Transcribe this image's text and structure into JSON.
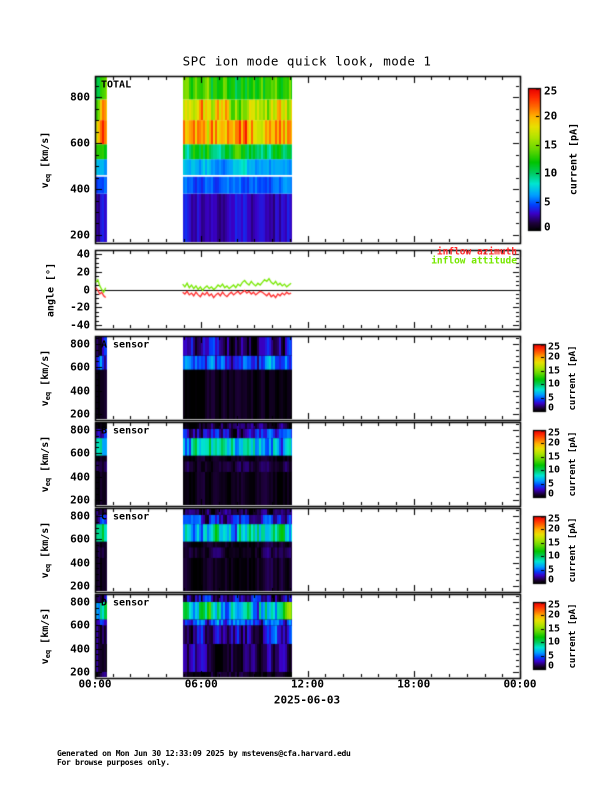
{
  "title": "SPC ion mode quick look, mode 1",
  "x_axis": {
    "labels": [
      "00:00",
      "06:00",
      "12:00",
      "18:00",
      "00:00"
    ],
    "hours": [
      0,
      6,
      12,
      18,
      24
    ],
    "minor_step_hours": 1,
    "date_label": "2025-06-03",
    "range_hours": [
      0,
      24
    ]
  },
  "colorbar": {
    "label": "current [pA]",
    "ticks": [
      0,
      5,
      10,
      15,
      20,
      25
    ],
    "range_pA": [
      0,
      25
    ]
  },
  "footer": {
    "line1": "Generated on Mon Jun 30 12:33:09 2025 by mstevens@cfa.harvard.edu",
    "line2": "For browse purposes only."
  },
  "chart_data": {
    "type": "heatmap",
    "subtype": "time-velocity current spectrograms, 6 stacked panels",
    "date": "2025-06-03",
    "x_hours_range": [
      0,
      24
    ],
    "measurement_segments_hours": [
      [
        0.05,
        0.7
      ],
      [
        4.95,
        11.1
      ]
    ],
    "colormap_range_pA": [
      0,
      25
    ],
    "v_axis_label": {
      "pre": "v",
      "sub": "eq",
      "post": "[km/s]"
    },
    "panels": [
      {
        "id": "total",
        "label": "TOTAL",
        "kind": "spectrogram",
        "background": "white",
        "v_range": [
          165,
          892
        ],
        "v_ticks": [
          200,
          400,
          600,
          800
        ],
        "v_minor_step": 50,
        "bands": [
          {
            "v": [
              165,
              380
            ],
            "pA": 3.2,
            "var": 1.2
          },
          {
            "v": [
              380,
              460
            ],
            "pA": 5.0,
            "var": 1.2
          },
          {
            "v": [
              460,
              530
            ],
            "pA": 6.8,
            "var": 1.5
          },
          {
            "v": [
              530,
              595
            ],
            "pA": 11.0,
            "var": 2.5
          },
          {
            "v": [
              595,
              700
            ],
            "pA": 20.0,
            "var": 4.0
          },
          {
            "v": [
              700,
              790
            ],
            "pA": 17.0,
            "var": 5.0
          },
          {
            "v": [
              790,
              892
            ],
            "pA": 12.0,
            "var": 3.5
          }
        ],
        "white_line_v": 457
      },
      {
        "id": "angle",
        "label": null,
        "kind": "line",
        "y_label": "angle [°]",
        "y_range": [
          -44,
          44
        ],
        "y_ticks": [
          -40,
          -20,
          0,
          20,
          40
        ],
        "y_minor_step": 5,
        "zero_line": true,
        "series": [
          {
            "name": "inflow azimuth",
            "color": "#ff2a2a",
            "segments": [
              {
                "h0": 0.05,
                "dh": 0.11,
                "values": [
                  2,
                  -1,
                  -5,
                  -3,
                  -7,
                  -9
                ]
              },
              {
                "h0": 4.95,
                "dh": 0.125,
                "values": [
                  -3,
                  -5,
                  -2,
                  -6,
                  -4,
                  -7,
                  -3,
                  -6,
                  -8,
                  -4,
                  -6,
                  -3,
                  -7,
                  -5,
                  -9,
                  -6,
                  -4,
                  -7,
                  -3,
                  -6,
                  -8,
                  -5,
                  -3,
                  -6,
                  -4,
                  -2,
                  -5,
                  -3,
                  -1,
                  -4,
                  -2,
                  -5,
                  -3,
                  -6,
                  -4,
                  -2,
                  -3,
                  -5,
                  -7,
                  -4,
                  -8,
                  -6,
                  -9,
                  -5,
                  -7,
                  -4,
                  -6,
                  -3,
                  -5,
                  -4
                ]
              }
            ]
          },
          {
            "name": "inflow attitude",
            "color": "#77e800",
            "segments": [
              {
                "h0": 0.05,
                "dh": 0.11,
                "values": [
                  8,
                  11,
                  4,
                  0,
                  -3,
                  2
                ]
              },
              {
                "h0": 4.95,
                "dh": 0.125,
                "values": [
                  6,
                  3,
                  7,
                  2,
                  5,
                  1,
                  4,
                  0,
                  3,
                  -1,
                  2,
                  4,
                  1,
                  3,
                  0,
                  2,
                  5,
                  3,
                  6,
                  2,
                  4,
                  1,
                  3,
                  5,
                  2,
                  6,
                  4,
                  8,
                  10,
                  7,
                  5,
                  9,
                  6,
                  4,
                  7,
                  5,
                  8,
                  11,
                  9,
                  12,
                  8,
                  6,
                  9,
                  5,
                  7,
                  4,
                  6,
                  3,
                  5,
                  7
                ]
              }
            ]
          }
        ]
      },
      {
        "id": "sensor-a",
        "label": "A sensor",
        "kind": "spectrogram",
        "background": "black",
        "v_range": [
          148,
          868
        ],
        "v_ticks": [
          200,
          400,
          600,
          800
        ],
        "v_minor_step": 50,
        "bands": [
          {
            "v": [
              148,
              868
            ],
            "pA": 0.5,
            "var": 0.9
          },
          {
            "v": [
              580,
              700
            ],
            "pA": 3.8,
            "var": 3.0
          },
          {
            "v": [
              700,
              860
            ],
            "pA": 2.2,
            "var": 2.4
          }
        ]
      },
      {
        "id": "sensor-b",
        "label": "B sensor",
        "kind": "spectrogram",
        "background": "black",
        "v_range": [
          148,
          868
        ],
        "v_ticks": [
          200,
          400,
          600,
          800
        ],
        "v_minor_step": 50,
        "bands": [
          {
            "v": [
              148,
              868
            ],
            "pA": 0.5,
            "var": 0.9
          },
          {
            "v": [
              440,
              530
            ],
            "pA": 1.1,
            "var": 1.0
          },
          {
            "v": [
              580,
              730
            ],
            "pA": 7.5,
            "var": 4.0
          },
          {
            "v": [
              730,
              810
            ],
            "pA": 3.0,
            "var": 2.6
          },
          {
            "v": [
              810,
              868
            ],
            "pA": 1.4,
            "var": 1.6
          }
        ]
      },
      {
        "id": "sensor-c",
        "label": "C sensor",
        "kind": "spectrogram",
        "background": "black",
        "v_range": [
          148,
          868
        ],
        "v_ticks": [
          200,
          400,
          600,
          800
        ],
        "v_minor_step": 50,
        "bands": [
          {
            "v": [
              148,
              868
            ],
            "pA": 0.5,
            "var": 0.9
          },
          {
            "v": [
              440,
              530
            ],
            "pA": 1.0,
            "var": 1.0
          },
          {
            "v": [
              580,
              730
            ],
            "pA": 7.8,
            "var": 4.0
          },
          {
            "v": [
              730,
              810
            ],
            "pA": 3.2,
            "var": 2.6
          },
          {
            "v": [
              810,
              868
            ],
            "pA": 1.5,
            "var": 1.6
          }
        ]
      },
      {
        "id": "sensor-d",
        "label": "D sensor",
        "kind": "spectrogram",
        "background": "black",
        "v_range": [
          148,
          868
        ],
        "v_ticks": [
          200,
          400,
          600,
          800
        ],
        "v_minor_step": 50,
        "bands": [
          {
            "v": [
              148,
              868
            ],
            "pA": 0.9,
            "var": 1.2
          },
          {
            "v": [
              200,
              440
            ],
            "pA": 1.8,
            "var": 1.6
          },
          {
            "v": [
              440,
              600
            ],
            "pA": 3.0,
            "var": 2.4
          },
          {
            "v": [
              600,
              650
            ],
            "pA": 5.0,
            "var": 3.0
          },
          {
            "v": [
              650,
              800
            ],
            "pA": 9.0,
            "var": 5.0
          },
          {
            "v": [
              800,
              868
            ],
            "pA": 2.8,
            "var": 2.6
          }
        ]
      }
    ]
  }
}
